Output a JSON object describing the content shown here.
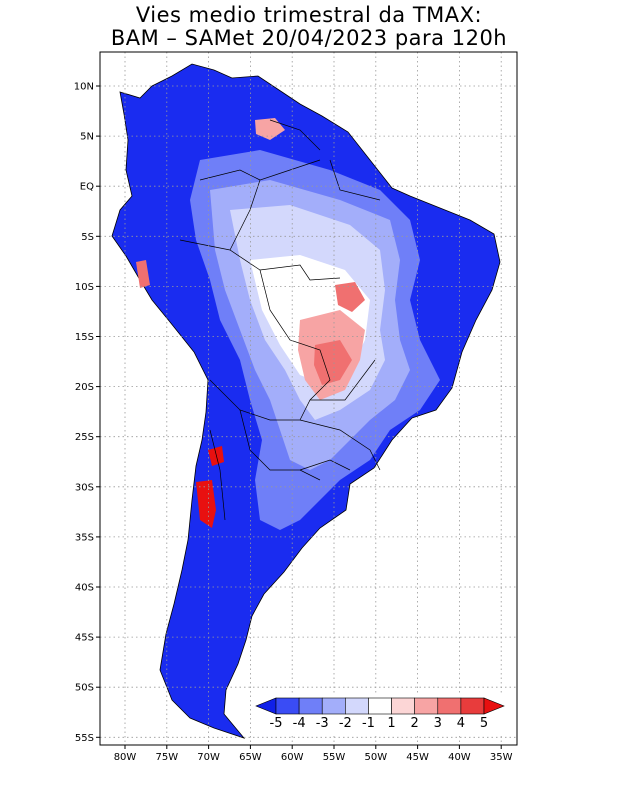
{
  "title": {
    "line1": "Vies medio trimestral da TMAX:",
    "line2": "BAM – SAMet 20/04/2023  para 120h"
  },
  "map": {
    "lat_labels": [
      "10N",
      "5N",
      "EQ",
      "5S",
      "10S",
      "15S",
      "20S",
      "25S",
      "30S",
      "35S",
      "40S",
      "45S",
      "50S",
      "55S"
    ],
    "lon_labels": [
      "80W",
      "75W",
      "70W",
      "65W",
      "60W",
      "55W",
      "50W",
      "45W",
      "40W",
      "35W"
    ],
    "grid": "dotted"
  },
  "colorbar": {
    "labels": [
      "-5",
      "-4",
      "-3",
      "-2",
      "-1",
      "1",
      "2",
      "3",
      "4",
      "5"
    ],
    "colors": [
      "#1020e8",
      "#3a4cf5",
      "#6f7ff8",
      "#a3aefa",
      "#d3d8fc",
      "#ffffff",
      "#fcd6d6",
      "#f7a4a4",
      "#f07070",
      "#e83c3c",
      "#e81010"
    ]
  }
}
